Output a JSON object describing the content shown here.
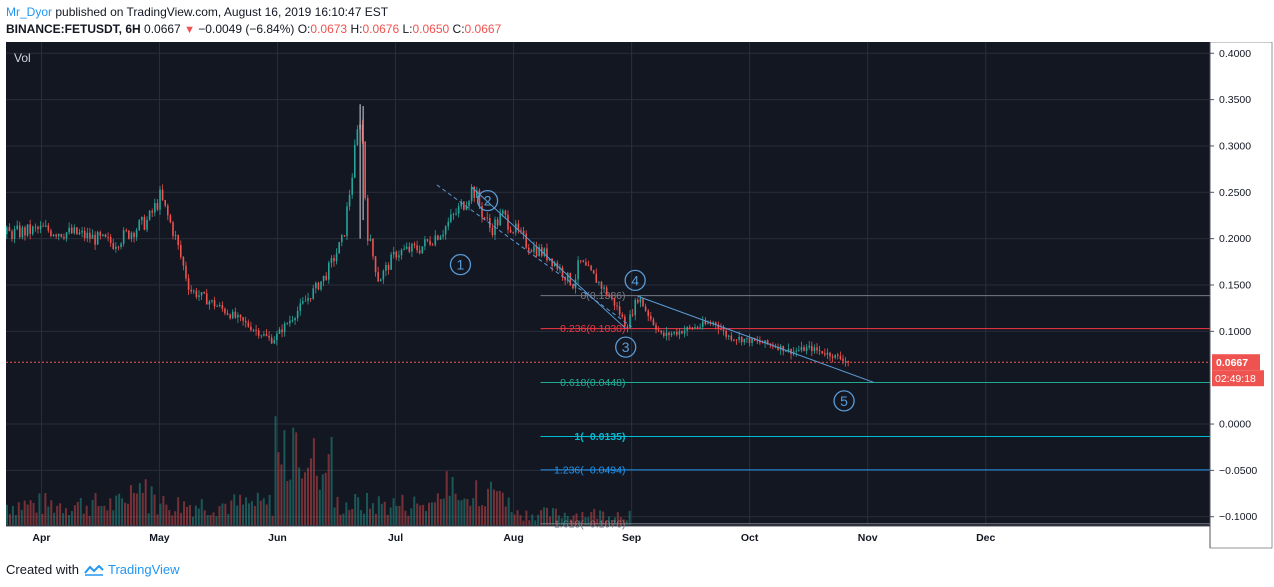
{
  "header": {
    "author": "Mr_Dyor",
    "published": "published on TradingView.com, August 16, 2019 16:10:47 EST",
    "symbol": "BINANCE:FETUSDT, 6H",
    "last": "0.0667",
    "change": "−0.0049 (−6.84%)",
    "o_label": "O:",
    "o_val": "0.0673",
    "h_label": "H:",
    "h_val": "0.0676",
    "l_label": "L:",
    "l_val": "0.0650",
    "c_label": "C:",
    "c_val": "0.0667"
  },
  "footer": {
    "created": "Created with",
    "brand": "TradingView"
  },
  "colors": {
    "background": "#131722",
    "up": "#26a69a",
    "down": "#ef5350",
    "wave": "#5b9bd5"
  },
  "chart_data": {
    "type": "candlestick",
    "pane_label": "Vol",
    "ylim": [
      -0.11,
      0.41
    ],
    "y_ticks": [
      0.4,
      0.35,
      0.3,
      0.25,
      0.2,
      0.15,
      0.1,
      0.0,
      -0.05,
      -0.1
    ],
    "y_tick_labels": [
      "0.4000",
      "0.3500",
      "0.3000",
      "0.2500",
      "0.2000",
      "0.1500",
      "0.1000",
      "0.0000",
      "−0.0500",
      "−0.1000"
    ],
    "x_months": [
      "Apr",
      "May",
      "Jun",
      "Jul",
      "Aug",
      "Sep",
      "Oct",
      "Nov",
      "Dec"
    ],
    "x_month_pos": [
      0.0,
      1.0,
      2.0,
      3.0,
      4.0,
      5.0,
      6.0,
      7.0,
      8.0
    ],
    "x_range": [
      -0.3,
      9.9
    ],
    "last_price": {
      "value": 0.0667,
      "label": "0.0667",
      "countdown": "02:49:18"
    },
    "price_path": [
      [
        -0.3,
        0.205
      ],
      [
        0.0,
        0.21
      ],
      [
        0.3,
        0.205
      ],
      [
        0.6,
        0.195
      ],
      [
        0.9,
        0.22
      ],
      [
        1.0,
        0.245
      ],
      [
        1.12,
        0.205
      ],
      [
        1.25,
        0.145
      ],
      [
        1.45,
        0.13
      ],
      [
        1.7,
        0.11
      ],
      [
        1.95,
        0.09
      ],
      [
        2.15,
        0.12
      ],
      [
        2.4,
        0.16
      ],
      [
        2.55,
        0.2
      ],
      [
        2.7,
        0.34
      ],
      [
        2.75,
        0.21
      ],
      [
        2.85,
        0.155
      ],
      [
        3.0,
        0.185
      ],
      [
        3.2,
        0.19
      ],
      [
        3.4,
        0.21
      ],
      [
        3.55,
        0.235
      ],
      [
        3.65,
        0.255
      ],
      [
        3.72,
        0.23
      ],
      [
        3.8,
        0.21
      ],
      [
        3.9,
        0.225
      ],
      [
        4.1,
        0.195
      ],
      [
        4.3,
        0.18
      ],
      [
        4.5,
        0.15
      ],
      [
        4.55,
        0.175
      ],
      [
        4.7,
        0.155
      ],
      [
        4.85,
        0.13
      ],
      [
        4.95,
        0.105
      ],
      [
        5.05,
        0.138
      ],
      [
        5.15,
        0.115
      ],
      [
        5.25,
        0.095
      ],
      [
        5.4,
        0.1
      ],
      [
        5.55,
        0.105
      ],
      [
        5.7,
        0.11
      ],
      [
        5.8,
        0.095
      ],
      [
        6.0,
        0.09
      ],
      [
        6.2,
        0.085
      ],
      [
        6.35,
        0.078
      ],
      [
        6.5,
        0.082
      ],
      [
        6.7,
        0.074
      ],
      [
        6.85,
        0.0667
      ]
    ],
    "volume": {
      "ylim": [
        0,
        0.25
      ],
      "note": "relative volume bars, bottom pane"
    },
    "fib_levels": [
      {
        "label": "0(0.1386)",
        "value": 0.1386,
        "color": "#787b86"
      },
      {
        "label": "0.236(0.1030)",
        "value": 0.103,
        "color": "#f23645"
      },
      {
        "label": "0.618(0.0448)",
        "value": 0.0448,
        "color": "#22ab94"
      },
      {
        "label": "1(−0.0135)",
        "value": -0.0135,
        "color": "#00bcd4"
      },
      {
        "label": "1.236(−0.0494)",
        "value": -0.0494,
        "color": "#2196f3"
      },
      {
        "label": "1.618(−0.1076)",
        "value": -0.1076,
        "color": "#787b86"
      }
    ],
    "wave_labels": [
      {
        "label": "1",
        "x": 3.55,
        "y": 0.172
      },
      {
        "label": "2",
        "x": 3.78,
        "y": 0.241
      },
      {
        "label": "3",
        "x": 4.95,
        "y": 0.083
      },
      {
        "label": "4",
        "x": 5.03,
        "y": 0.155
      },
      {
        "label": "5",
        "x": 6.8,
        "y": 0.025
      }
    ],
    "wave_lines": [
      [
        [
          3.65,
          0.255
        ],
        [
          4.95,
          0.103
        ]
      ],
      [
        [
          3.35,
          0.258
        ],
        [
          5.0,
          0.105
        ]
      ],
      [
        [
          5.05,
          0.138
        ],
        [
          7.05,
          0.045
        ]
      ]
    ]
  }
}
